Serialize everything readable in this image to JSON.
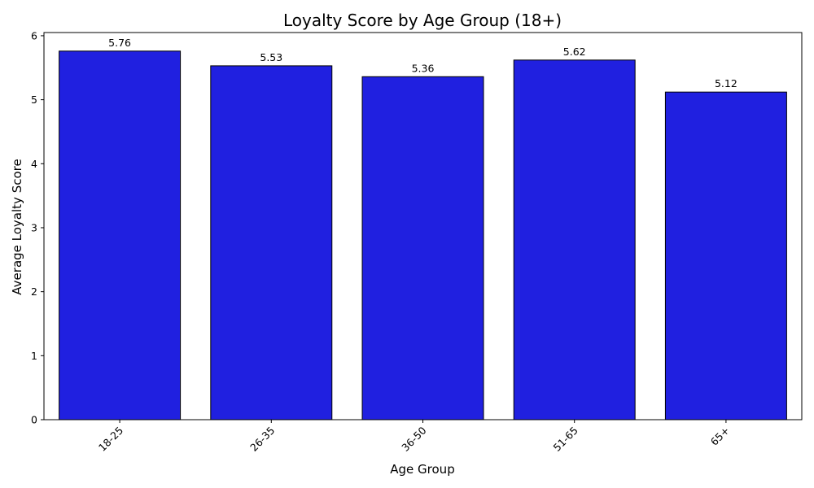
{
  "chart_data": {
    "type": "bar",
    "title": "Loyalty Score by Age Group (18+)",
    "xlabel": "Age Group",
    "ylabel": "Average Loyalty Score",
    "categories": [
      "18-25",
      "26-35",
      "36-50",
      "51-65",
      "65+"
    ],
    "values": [
      5.76,
      5.53,
      5.36,
      5.62,
      5.12
    ],
    "value_labels": [
      "5.76",
      "5.53",
      "5.36",
      "5.62",
      "5.12"
    ],
    "ylim": [
      0,
      6.05
    ],
    "yticks": [
      0,
      1,
      2,
      3,
      4,
      5,
      6
    ],
    "ytick_labels": [
      "0",
      "1",
      "2",
      "3",
      "4",
      "5",
      "6"
    ],
    "grid": false,
    "bar_color": "#2020e0",
    "edge_color": "#000000"
  }
}
